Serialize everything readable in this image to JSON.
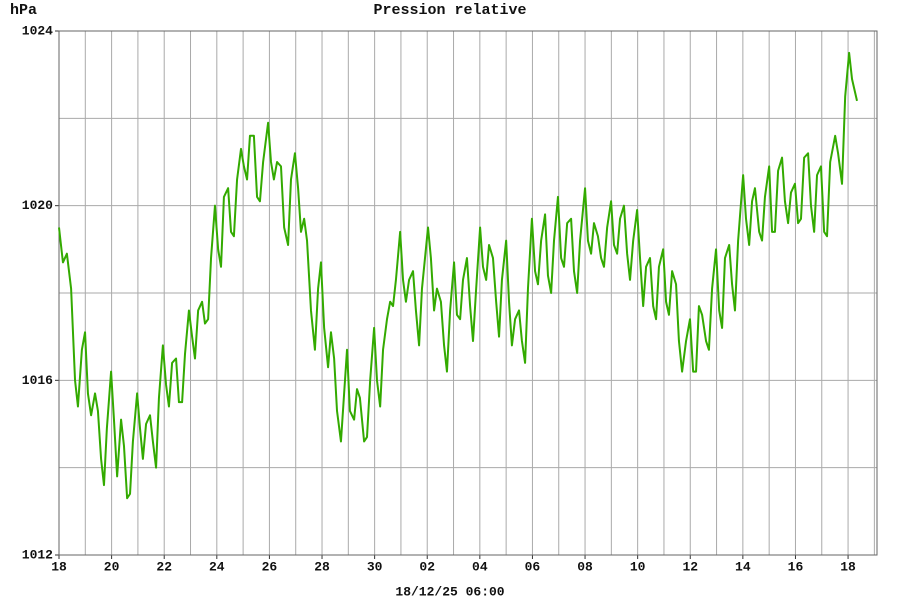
{
  "chart_data": {
    "type": "line",
    "title": "Pression relative",
    "y_label": "hPa",
    "x_label": "18/12/25 06:00",
    "color": "#33aa00",
    "title_color": "#33cc00",
    "grid": true,
    "xlim": [
      0,
      31.1
    ],
    "ylim": [
      1012,
      1024
    ],
    "yticks": [
      1012,
      1016,
      1020,
      1024
    ],
    "ygrid": [
      1014,
      1018,
      1022
    ],
    "xticks": [
      {
        "value": 0,
        "label": "18"
      },
      {
        "value": 2,
        "label": "20"
      },
      {
        "value": 4,
        "label": "22"
      },
      {
        "value": 6,
        "label": "24"
      },
      {
        "value": 8,
        "label": "26"
      },
      {
        "value": 10,
        "label": "28"
      },
      {
        "value": 12,
        "label": "30"
      },
      {
        "value": 14,
        "label": "02"
      },
      {
        "value": 16,
        "label": "04"
      },
      {
        "value": 18,
        "label": "06"
      },
      {
        "value": 20,
        "label": "08"
      },
      {
        "value": 22,
        "label": "10"
      },
      {
        "value": 24,
        "label": "12"
      },
      {
        "value": 26,
        "label": "14"
      },
      {
        "value": 28,
        "label": "16"
      },
      {
        "value": 30,
        "label": "18"
      }
    ],
    "xgrid": [
      1,
      3,
      5,
      7,
      9,
      11,
      13,
      15,
      17,
      19,
      21,
      23,
      25,
      27,
      29,
      31
    ],
    "x": [
      0,
      0.15,
      0.3,
      0.46,
      0.61,
      0.72,
      0.87,
      0.99,
      1.1,
      1.22,
      1.37,
      1.48,
      1.6,
      1.71,
      1.82,
      1.98,
      2.09,
      2.21,
      2.36,
      2.47,
      2.59,
      2.7,
      2.81,
      2.97,
      3.08,
      3.19,
      3.31,
      3.46,
      3.57,
      3.69,
      3.8,
      3.95,
      4.07,
      4.18,
      4.3,
      4.45,
      4.56,
      4.68,
      4.79,
      4.94,
      5.06,
      5.17,
      5.29,
      5.44,
      5.55,
      5.67,
      5.78,
      5.93,
      6.05,
      6.16,
      6.27,
      6.43,
      6.54,
      6.65,
      6.77,
      6.92,
      7.03,
      7.15,
      7.26,
      7.41,
      7.53,
      7.64,
      7.76,
      7.95,
      8.06,
      8.17,
      8.29,
      8.44,
      8.56,
      8.71,
      8.82,
      8.97,
      9.09,
      9.2,
      9.32,
      9.43,
      9.58,
      9.73,
      9.85,
      9.96,
      10.08,
      10.23,
      10.34,
      10.46,
      10.57,
      10.72,
      10.84,
      10.95,
      11.06,
      11.22,
      11.33,
      11.44,
      11.6,
      11.71,
      11.83,
      11.98,
      12.09,
      12.21,
      12.32,
      12.47,
      12.59,
      12.7,
      12.81,
      12.97,
      13.08,
      13.19,
      13.31,
      13.46,
      13.57,
      13.69,
      13.8,
      14.03,
      14.14,
      14.26,
      14.37,
      14.52,
      14.64,
      14.75,
      14.87,
      15.02,
      15.13,
      15.25,
      15.36,
      15.51,
      15.63,
      15.74,
      15.86,
      16.01,
      16.12,
      16.24,
      16.35,
      16.5,
      16.62,
      16.73,
      16.84,
      17.0,
      17.11,
      17.22,
      17.34,
      17.49,
      17.6,
      17.72,
      17.83,
      17.98,
      18.1,
      18.21,
      18.33,
      18.48,
      18.59,
      18.71,
      18.82,
      18.97,
      19.09,
      19.2,
      19.32,
      19.47,
      19.58,
      19.7,
      19.81,
      20.0,
      20.11,
      20.23,
      20.34,
      20.49,
      20.61,
      20.72,
      20.84,
      20.99,
      21.1,
      21.22,
      21.33,
      21.48,
      21.6,
      21.71,
      21.83,
      21.98,
      22.09,
      22.21,
      22.32,
      22.47,
      22.59,
      22.7,
      22.81,
      22.97,
      23.08,
      23.19,
      23.31,
      23.46,
      23.57,
      23.69,
      23.84,
      23.99,
      24.11,
      24.22,
      24.33,
      24.45,
      24.6,
      24.71,
      24.83,
      24.98,
      25.1,
      25.21,
      25.32,
      25.48,
      25.59,
      25.7,
      25.82,
      26.01,
      26.12,
      26.24,
      26.35,
      26.46,
      26.62,
      26.73,
      26.84,
      27.0,
      27.11,
      27.22,
      27.34,
      27.49,
      27.6,
      27.72,
      27.83,
      27.98,
      28.1,
      28.21,
      28.33,
      28.48,
      28.59,
      28.71,
      28.82,
      28.97,
      29.09,
      29.2,
      29.32,
      29.51,
      29.62,
      29.77,
      29.89,
      30.04,
      30.15,
      30.34
    ],
    "values": [
      1019.5,
      1018.7,
      1018.9,
      1018.1,
      1016.0,
      1015.4,
      1016.7,
      1017.1,
      1015.7,
      1015.2,
      1015.7,
      1015.3,
      1014.2,
      1013.6,
      1014.9,
      1016.2,
      1015.1,
      1013.8,
      1015.1,
      1014.5,
      1013.3,
      1013.4,
      1014.6,
      1015.7,
      1014.9,
      1014.2,
      1015.0,
      1015.2,
      1014.6,
      1014.0,
      1015.6,
      1016.8,
      1015.9,
      1015.4,
      1016.4,
      1016.5,
      1015.5,
      1015.5,
      1016.6,
      1017.6,
      1017.0,
      1016.5,
      1017.6,
      1017.8,
      1017.3,
      1017.4,
      1018.8,
      1020.0,
      1019.0,
      1018.6,
      1020.2,
      1020.4,
      1019.4,
      1019.3,
      1020.6,
      1021.3,
      1020.9,
      1020.6,
      1021.6,
      1021.6,
      1020.2,
      1020.1,
      1021.0,
      1021.9,
      1021.0,
      1020.6,
      1021.0,
      1020.9,
      1019.5,
      1019.1,
      1020.6,
      1021.2,
      1020.4,
      1019.4,
      1019.7,
      1019.2,
      1017.6,
      1016.7,
      1018.1,
      1018.7,
      1017.2,
      1016.3,
      1017.1,
      1016.5,
      1015.3,
      1014.6,
      1015.7,
      1016.7,
      1015.3,
      1015.1,
      1015.8,
      1015.6,
      1014.6,
      1014.7,
      1016.0,
      1017.2,
      1016.0,
      1015.4,
      1016.7,
      1017.4,
      1017.8,
      1017.7,
      1018.3,
      1019.4,
      1018.3,
      1017.8,
      1018.3,
      1018.5,
      1017.6,
      1016.8,
      1018.1,
      1019.5,
      1018.8,
      1017.6,
      1018.1,
      1017.8,
      1016.8,
      1016.2,
      1017.6,
      1018.7,
      1017.5,
      1017.4,
      1018.3,
      1018.8,
      1017.7,
      1016.9,
      1018.1,
      1019.5,
      1018.6,
      1018.3,
      1019.1,
      1018.8,
      1017.8,
      1017.0,
      1018.3,
      1019.2,
      1017.8,
      1016.8,
      1017.4,
      1017.6,
      1016.9,
      1016.4,
      1018.1,
      1019.7,
      1018.5,
      1018.2,
      1019.2,
      1019.8,
      1018.4,
      1018.0,
      1019.2,
      1020.2,
      1018.8,
      1018.6,
      1019.6,
      1019.7,
      1018.5,
      1018.0,
      1019.2,
      1020.4,
      1019.2,
      1018.9,
      1019.6,
      1019.3,
      1018.8,
      1018.6,
      1019.5,
      1020.1,
      1019.1,
      1018.9,
      1019.7,
      1020.0,
      1018.9,
      1018.3,
      1019.2,
      1019.9,
      1018.8,
      1017.7,
      1018.6,
      1018.8,
      1017.7,
      1017.4,
      1018.6,
      1019.0,
      1017.8,
      1017.5,
      1018.5,
      1018.2,
      1016.9,
      1016.2,
      1016.9,
      1017.4,
      1016.2,
      1016.2,
      1017.7,
      1017.5,
      1016.9,
      1016.7,
      1018.1,
      1019.0,
      1017.6,
      1017.2,
      1018.8,
      1019.1,
      1018.2,
      1017.6,
      1019.2,
      1020.7,
      1019.7,
      1019.1,
      1020.1,
      1020.4,
      1019.4,
      1019.2,
      1020.2,
      1020.9,
      1019.4,
      1019.4,
      1020.8,
      1021.1,
      1020.1,
      1019.6,
      1020.3,
      1020.5,
      1019.6,
      1019.7,
      1021.1,
      1021.2,
      1020.0,
      1019.4,
      1020.7,
      1020.9,
      1019.4,
      1019.3,
      1021.0,
      1021.6,
      1021.2,
      1020.5,
      1022.5,
      1023.5,
      1022.9,
      1022.4
    ]
  }
}
